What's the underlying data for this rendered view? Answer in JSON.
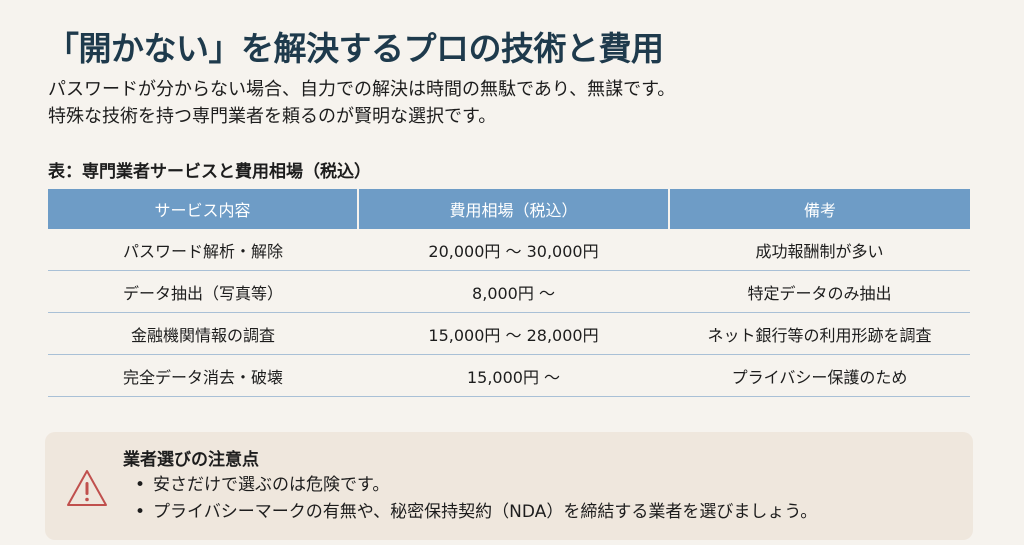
{
  "title": "「開かない」を解決するプロの技術と費用",
  "lead": [
    "パスワードが分からない場合、自力での解決は時間の無駄であり、無謀です。",
    "特殊な技術を持つ専門業者を頼るのが賢明な選択です。"
  ],
  "table": {
    "caption": "表：専門業者サービスと費用相場（税込）",
    "headers": [
      "サービス内容",
      "費用相場（税込）",
      "備考"
    ],
    "rows": [
      [
        "パスワード解析・解除",
        "20,000円 ～ 30,000円",
        "成功報酬制が多い"
      ],
      [
        "データ抽出（写真等）",
        "8,000円 ～",
        "特定データのみ抽出"
      ],
      [
        "金融機関情報の調査",
        "15,000円 ～ 28,000円",
        "ネット銀行等の利用形跡を調査"
      ],
      [
        "完全データ消去・破壊",
        "15,000円 ～",
        "プライバシー保護のため"
      ]
    ]
  },
  "notice": {
    "icon": "warning-triangle-icon",
    "title": "業者選びの注意点",
    "items": [
      "安さだけで選ぶのは危険です。",
      "プライバシーマークの有無や、秘密保持契約（NDA）を締結する業者を選びましょう。"
    ]
  },
  "colors": {
    "header": "#6e9cc6",
    "title": "#1e3a4c",
    "warning": "#c0504d",
    "background": "#f6f3ee"
  }
}
